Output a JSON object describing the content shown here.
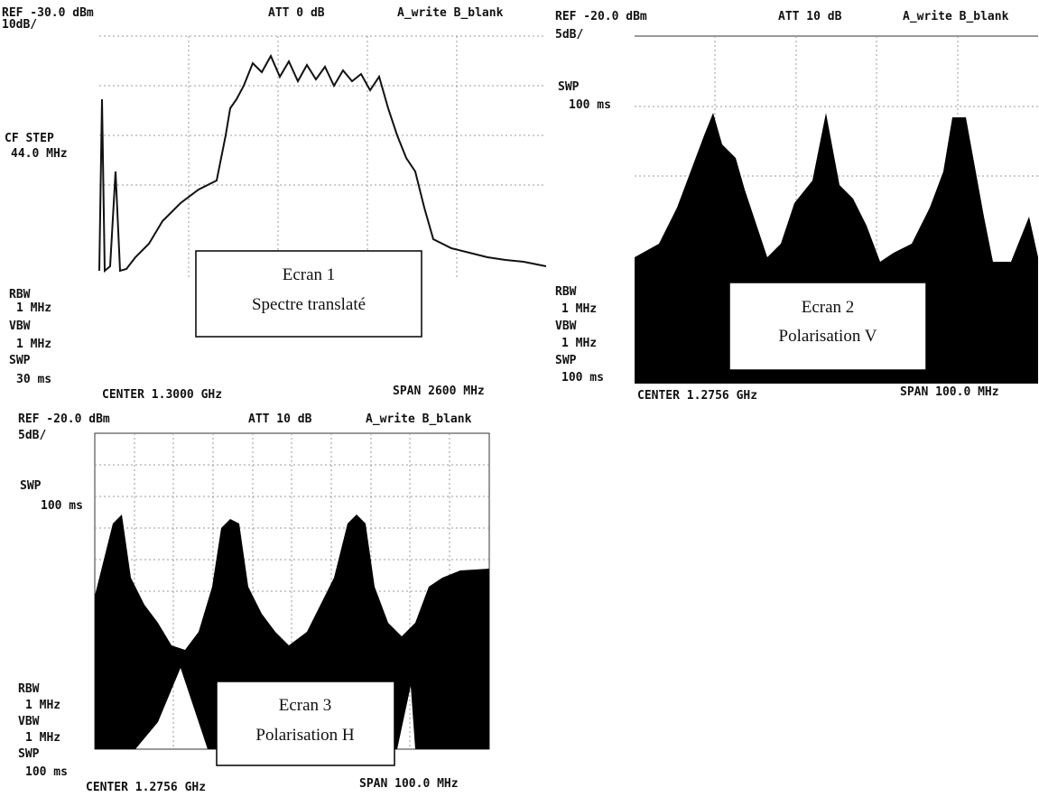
{
  "screens": [
    {
      "ref": "REF -30.0 dBm",
      "scale": "10dB/",
      "att": "ATT 0 dB",
      "mode": "A_write B_blank",
      "side_top": [
        "CF STEP",
        "44.0 MHz"
      ],
      "side_bottom": [
        "RBW",
        "1 MHz",
        "VBW",
        "1 MHz",
        "SWP",
        "30 ms"
      ],
      "center": "CENTER 1.3000 GHz",
      "span": "SPAN 2600 MHz",
      "caption": [
        "Ecran 1",
        "Spectre translaté"
      ]
    },
    {
      "ref": "REF -20.0 dBm",
      "scale": "5dB/",
      "att": "ATT 10 dB",
      "mode": "A_write B_blank",
      "side_top": [
        "SWP",
        "100 ms"
      ],
      "side_bottom": [
        "RBW",
        "1 MHz",
        "VBW",
        "1 MHz",
        "SWP",
        "100 ms"
      ],
      "center": "CENTER 1.2756 GHz",
      "span": "SPAN 100.0 MHz",
      "caption": [
        "Ecran 2",
        "Polarisation V"
      ]
    },
    {
      "ref": "REF -20.0 dBm",
      "scale": "5dB/",
      "att": "ATT 10 dB",
      "mode": "A_write B_blank",
      "side_top": [
        "SWP",
        "100 ms"
      ],
      "side_bottom": [
        "RBW",
        "1 MHz",
        "VBW",
        "1 MHz",
        "SWP",
        "100 ms"
      ],
      "center": "CENTER 1.2756 GHz",
      "span": "SPAN 100.0 MHz",
      "caption": [
        "Ecran 3",
        "Polarisation H"
      ]
    }
  ]
}
